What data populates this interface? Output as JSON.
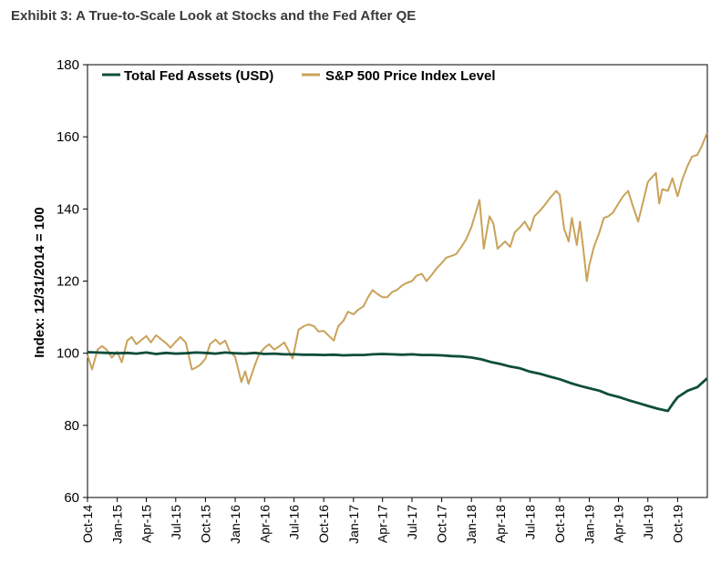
{
  "title": "Exhibit 3: A True-to-Scale Look at Stocks and the Fed After QE",
  "chart_data": {
    "type": "line",
    "title": "Exhibit 3: A True-to-Scale Look at Stocks and the Fed After QE",
    "xlabel": "",
    "ylabel": "Index: 12/31/2014 = 100",
    "ylim": [
      60,
      180
    ],
    "yticks": [
      60,
      80,
      100,
      120,
      140,
      160,
      180
    ],
    "xlim": [
      "2014-10",
      "2019-12"
    ],
    "grid": false,
    "legend_position": "top",
    "x_tick_labels": [
      "Oct-14",
      "Jan-15",
      "Apr-15",
      "Jul-15",
      "Oct-15",
      "Jan-16",
      "Apr-16",
      "Jul-16",
      "Oct-16",
      "Jan-17",
      "Apr-17",
      "Jul-17",
      "Oct-17",
      "Jan-18",
      "Apr-18",
      "Jul-18",
      "Oct-18",
      "Jan-19",
      "Apr-19",
      "Jul-19",
      "Oct-19"
    ],
    "series": [
      {
        "name": "Total Fed Assets (USD)",
        "color": "#0f4d3c",
        "points": [
          [
            "2014-10-01",
            100.3
          ],
          [
            "2014-11-01",
            100.2
          ],
          [
            "2014-12-01",
            100.1
          ],
          [
            "2015-01-01",
            100.0
          ],
          [
            "2015-02-01",
            100.1
          ],
          [
            "2015-03-01",
            99.9
          ],
          [
            "2015-04-01",
            100.2
          ],
          [
            "2015-05-01",
            99.8
          ],
          [
            "2015-06-01",
            100.1
          ],
          [
            "2015-07-01",
            99.9
          ],
          [
            "2015-08-01",
            100.0
          ],
          [
            "2015-09-01",
            100.2
          ],
          [
            "2015-10-01",
            100.1
          ],
          [
            "2015-11-01",
            99.9
          ],
          [
            "2015-12-01",
            100.2
          ],
          [
            "2016-01-01",
            100.0
          ],
          [
            "2016-02-01",
            99.9
          ],
          [
            "2016-03-01",
            100.1
          ],
          [
            "2016-04-01",
            99.8
          ],
          [
            "2016-05-01",
            99.9
          ],
          [
            "2016-06-01",
            99.7
          ],
          [
            "2016-07-01",
            99.7
          ],
          [
            "2016-08-01",
            99.6
          ],
          [
            "2016-09-01",
            99.6
          ],
          [
            "2016-10-01",
            99.5
          ],
          [
            "2016-11-01",
            99.6
          ],
          [
            "2016-12-01",
            99.4
          ],
          [
            "2017-01-01",
            99.5
          ],
          [
            "2017-02-01",
            99.5
          ],
          [
            "2017-03-01",
            99.7
          ],
          [
            "2017-04-01",
            99.8
          ],
          [
            "2017-05-01",
            99.7
          ],
          [
            "2017-06-01",
            99.6
          ],
          [
            "2017-07-01",
            99.7
          ],
          [
            "2017-08-01",
            99.5
          ],
          [
            "2017-09-01",
            99.5
          ],
          [
            "2017-10-01",
            99.4
          ],
          [
            "2017-11-01",
            99.2
          ],
          [
            "2017-12-01",
            99.1
          ],
          [
            "2018-01-01",
            98.8
          ],
          [
            "2018-02-01",
            98.3
          ],
          [
            "2018-03-01",
            97.6
          ],
          [
            "2018-04-01",
            97.0
          ],
          [
            "2018-05-01",
            96.3
          ],
          [
            "2018-06-01",
            95.8
          ],
          [
            "2018-07-01",
            94.9
          ],
          [
            "2018-08-01",
            94.3
          ],
          [
            "2018-09-01",
            93.5
          ],
          [
            "2018-10-01",
            92.8
          ],
          [
            "2018-11-01",
            91.8
          ],
          [
            "2018-12-01",
            91.0
          ],
          [
            "2019-01-01",
            90.3
          ],
          [
            "2019-02-01",
            89.6
          ],
          [
            "2019-03-01",
            88.6
          ],
          [
            "2019-04-01",
            87.9
          ],
          [
            "2019-05-01",
            87.0
          ],
          [
            "2019-06-01",
            86.2
          ],
          [
            "2019-07-01",
            85.4
          ],
          [
            "2019-08-01",
            84.6
          ],
          [
            "2019-09-01",
            84.0
          ],
          [
            "2019-09-20",
            86.5
          ],
          [
            "2019-10-01",
            87.8
          ],
          [
            "2019-11-01",
            89.6
          ],
          [
            "2019-12-01",
            90.6
          ],
          [
            "2019-12-31",
            93.0
          ]
        ]
      },
      {
        "name": "S&P 500 Price Index Level",
        "color": "#c9a259",
        "points": [
          [
            "2014-10-01",
            99.5
          ],
          [
            "2014-10-15",
            95.5
          ],
          [
            "2014-11-01",
            101.0
          ],
          [
            "2014-11-15",
            102.0
          ],
          [
            "2014-12-01",
            100.8
          ],
          [
            "2014-12-15",
            98.8
          ],
          [
            "2015-01-01",
            100.4
          ],
          [
            "2015-01-15",
            97.5
          ],
          [
            "2015-02-01",
            103.5
          ],
          [
            "2015-02-15",
            104.5
          ],
          [
            "2015-03-01",
            102.5
          ],
          [
            "2015-03-15",
            103.5
          ],
          [
            "2015-04-01",
            104.8
          ],
          [
            "2015-04-15",
            103.0
          ],
          [
            "2015-05-01",
            105.0
          ],
          [
            "2015-05-15",
            104.0
          ],
          [
            "2015-06-01",
            102.8
          ],
          [
            "2015-06-15",
            101.5
          ],
          [
            "2015-07-01",
            103.2
          ],
          [
            "2015-07-15",
            104.5
          ],
          [
            "2015-08-01",
            103.0
          ],
          [
            "2015-08-20",
            95.5
          ],
          [
            "2015-09-01",
            96.0
          ],
          [
            "2015-09-15",
            96.8
          ],
          [
            "2015-10-01",
            98.5
          ],
          [
            "2015-10-15",
            102.5
          ],
          [
            "2015-11-01",
            103.8
          ],
          [
            "2015-11-15",
            102.5
          ],
          [
            "2015-12-01",
            103.5
          ],
          [
            "2015-12-15",
            100.5
          ],
          [
            "2016-01-01",
            99.0
          ],
          [
            "2016-01-20",
            92.0
          ],
          [
            "2016-02-01",
            95.0
          ],
          [
            "2016-02-11",
            91.5
          ],
          [
            "2016-03-01",
            96.5
          ],
          [
            "2016-03-15",
            99.8
          ],
          [
            "2016-04-01",
            101.5
          ],
          [
            "2016-04-15",
            102.5
          ],
          [
            "2016-05-01",
            101.0
          ],
          [
            "2016-05-15",
            101.8
          ],
          [
            "2016-06-01",
            103.0
          ],
          [
            "2016-06-27",
            98.5
          ],
          [
            "2016-07-15",
            106.5
          ],
          [
            "2016-08-01",
            107.5
          ],
          [
            "2016-08-15",
            108.0
          ],
          [
            "2016-09-01",
            107.5
          ],
          [
            "2016-09-15",
            106.0
          ],
          [
            "2016-10-01",
            106.2
          ],
          [
            "2016-11-01",
            103.5
          ],
          [
            "2016-11-15",
            107.5
          ],
          [
            "2016-12-01",
            109.0
          ],
          [
            "2016-12-15",
            111.5
          ],
          [
            "2017-01-01",
            110.8
          ],
          [
            "2017-01-15",
            112.0
          ],
          [
            "2017-02-01",
            113.0
          ],
          [
            "2017-02-15",
            115.5
          ],
          [
            "2017-03-01",
            117.5
          ],
          [
            "2017-03-15",
            116.5
          ],
          [
            "2017-04-01",
            115.5
          ],
          [
            "2017-04-15",
            115.5
          ],
          [
            "2017-05-01",
            117.0
          ],
          [
            "2017-05-15",
            117.5
          ],
          [
            "2017-06-01",
            118.8
          ],
          [
            "2017-06-15",
            119.5
          ],
          [
            "2017-07-01",
            120.0
          ],
          [
            "2017-07-15",
            121.5
          ],
          [
            "2017-08-01",
            122.0
          ],
          [
            "2017-08-15",
            120.0
          ],
          [
            "2017-09-01",
            121.8
          ],
          [
            "2017-09-15",
            123.5
          ],
          [
            "2017-10-01",
            125.0
          ],
          [
            "2017-10-15",
            126.5
          ],
          [
            "2017-11-01",
            127.0
          ],
          [
            "2017-11-15",
            127.5
          ],
          [
            "2017-12-01",
            129.5
          ],
          [
            "2017-12-15",
            131.5
          ],
          [
            "2018-01-01",
            135.0
          ],
          [
            "2018-01-26",
            142.5
          ],
          [
            "2018-02-08",
            129.0
          ],
          [
            "2018-02-26",
            138.0
          ],
          [
            "2018-03-10",
            136.0
          ],
          [
            "2018-03-23",
            129.0
          ],
          [
            "2018-04-15",
            131.0
          ],
          [
            "2018-05-01",
            129.5
          ],
          [
            "2018-05-15",
            133.5
          ],
          [
            "2018-06-01",
            135.0
          ],
          [
            "2018-06-15",
            136.5
          ],
          [
            "2018-07-01",
            134.0
          ],
          [
            "2018-07-15",
            138.0
          ],
          [
            "2018-08-01",
            139.5
          ],
          [
            "2018-08-15",
            141.0
          ],
          [
            "2018-09-01",
            143.0
          ],
          [
            "2018-09-20",
            145.0
          ],
          [
            "2018-10-01",
            144.0
          ],
          [
            "2018-10-15",
            134.5
          ],
          [
            "2018-10-29",
            131.0
          ],
          [
            "2018-11-08",
            137.5
          ],
          [
            "2018-11-23",
            130.0
          ],
          [
            "2018-12-03",
            136.5
          ],
          [
            "2018-12-13",
            129.0
          ],
          [
            "2018-12-24",
            120.0
          ],
          [
            "2019-01-01",
            124.5
          ],
          [
            "2019-01-15",
            129.5
          ],
          [
            "2019-02-01",
            133.5
          ],
          [
            "2019-02-15",
            137.5
          ],
          [
            "2019-03-01",
            138.0
          ],
          [
            "2019-03-15",
            139.0
          ],
          [
            "2019-04-01",
            141.5
          ],
          [
            "2019-04-15",
            143.5
          ],
          [
            "2019-05-01",
            145.0
          ],
          [
            "2019-05-15",
            141.0
          ],
          [
            "2019-06-01",
            136.5
          ],
          [
            "2019-06-15",
            141.5
          ],
          [
            "2019-07-01",
            147.5
          ],
          [
            "2019-07-26",
            150.0
          ],
          [
            "2019-08-05",
            141.5
          ],
          [
            "2019-08-15",
            145.5
          ],
          [
            "2019-09-01",
            145.0
          ],
          [
            "2019-09-15",
            148.5
          ],
          [
            "2019-10-01",
            143.5
          ],
          [
            "2019-10-15",
            148.0
          ],
          [
            "2019-11-01",
            152.0
          ],
          [
            "2019-11-15",
            154.5
          ],
          [
            "2019-12-01",
            155.0
          ],
          [
            "2019-12-15",
            157.5
          ],
          [
            "2019-12-31",
            161.0
          ]
        ]
      }
    ]
  }
}
